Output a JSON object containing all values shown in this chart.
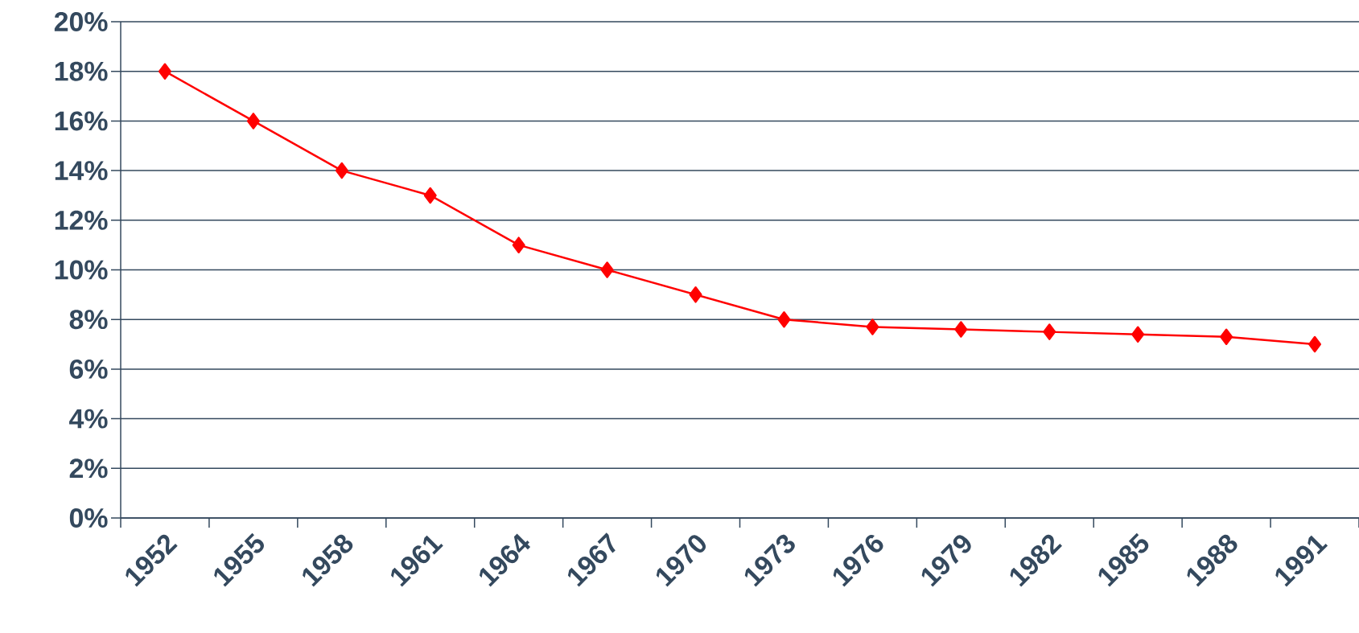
{
  "chart_data": {
    "type": "line",
    "categories": [
      "1952",
      "1955",
      "1958",
      "1961",
      "1964",
      "1967",
      "1970",
      "1973",
      "1976",
      "1979",
      "1982",
      "1985",
      "1988",
      "1991"
    ],
    "series": [
      {
        "color": "#ff0000",
        "values": [
          18,
          16,
          14,
          13,
          11,
          10,
          9,
          8,
          7.7,
          7.6,
          7.5,
          7.4,
          7.3,
          7.0
        ]
      }
    ],
    "ylim": [
      0,
      20
    ],
    "yticks": [
      {
        "value": 0,
        "label": "0%"
      },
      {
        "value": 2,
        "label": "2%"
      },
      {
        "value": 4,
        "label": "4%"
      },
      {
        "value": 6,
        "label": "6%"
      },
      {
        "value": 8,
        "label": "8%"
      },
      {
        "value": 10,
        "label": "10%"
      },
      {
        "value": 12,
        "label": "12%"
      },
      {
        "value": 14,
        "label": "14%"
      },
      {
        "value": 16,
        "label": "16%"
      },
      {
        "value": 18,
        "label": "18%"
      },
      {
        "value": 20,
        "label": "20%"
      }
    ],
    "grid": "y",
    "marker": "diamond",
    "line_style": "solid"
  }
}
